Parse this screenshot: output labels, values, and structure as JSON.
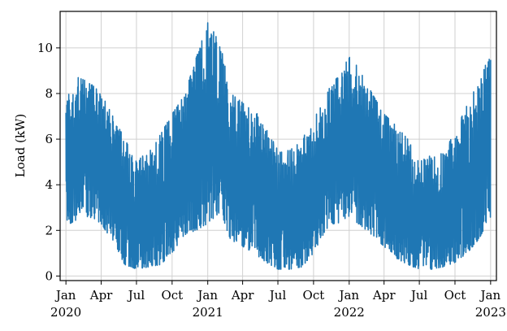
{
  "chart_data": {
    "type": "line",
    "title": "",
    "xlabel": "",
    "ylabel": "Load (kW)",
    "x_range": [
      "2019-12-17",
      "2023-01-16"
    ],
    "ylim": [
      -0.2,
      11.6
    ],
    "grid": true,
    "legend": "none",
    "x_ticks": [
      {
        "date": "2020-01-01",
        "label": "Jan",
        "year": "2020"
      },
      {
        "date": "2020-04-01",
        "label": "Apr",
        "year": ""
      },
      {
        "date": "2020-07-01",
        "label": "Jul",
        "year": ""
      },
      {
        "date": "2020-10-01",
        "label": "Oct",
        "year": ""
      },
      {
        "date": "2021-01-01",
        "label": "Jan",
        "year": "2021"
      },
      {
        "date": "2021-04-01",
        "label": "Apr",
        "year": ""
      },
      {
        "date": "2021-07-01",
        "label": "Jul",
        "year": ""
      },
      {
        "date": "2021-10-01",
        "label": "Oct",
        "year": ""
      },
      {
        "date": "2022-01-01",
        "label": "Jan",
        "year": "2022"
      },
      {
        "date": "2022-04-01",
        "label": "Apr",
        "year": ""
      },
      {
        "date": "2022-07-01",
        "label": "Jul",
        "year": ""
      },
      {
        "date": "2022-10-01",
        "label": "Oct",
        "year": ""
      },
      {
        "date": "2023-01-01",
        "label": "Jan",
        "year": "2023"
      }
    ],
    "y_ticks": [
      0,
      2,
      4,
      6,
      8,
      10
    ],
    "series": [
      {
        "color": "#1f77b4",
        "x": [
          "2020-01-01",
          "2020-02-01",
          "2020-03-01",
          "2020-04-01",
          "2020-05-01",
          "2020-06-01",
          "2020-07-01",
          "2020-08-01",
          "2020-09-01",
          "2020-10-01",
          "2020-11-01",
          "2020-12-01",
          "2021-01-01",
          "2021-02-01",
          "2021-03-01",
          "2021-04-01",
          "2021-05-01",
          "2021-06-01",
          "2021-07-01",
          "2021-08-01",
          "2021-09-01",
          "2021-10-01",
          "2021-11-01",
          "2021-12-01",
          "2022-01-01",
          "2022-02-01",
          "2022-03-01",
          "2022-04-01",
          "2022-05-01",
          "2022-06-01",
          "2022-07-01",
          "2022-08-01",
          "2022-09-01",
          "2022-10-01",
          "2022-11-01",
          "2022-12-01",
          "2023-01-01"
        ],
        "min": [
          2.2,
          2.5,
          2.6,
          2.3,
          1.5,
          0.5,
          0.3,
          0.4,
          0.5,
          1.0,
          1.8,
          2.0,
          2.3,
          2.8,
          1.6,
          1.3,
          1.0,
          0.6,
          0.3,
          0.3,
          0.4,
          1.0,
          2.0,
          2.3,
          2.6,
          2.2,
          1.8,
          1.3,
          0.8,
          0.5,
          0.3,
          0.3,
          0.4,
          0.6,
          1.0,
          1.6,
          2.6
        ],
        "max": [
          7.8,
          8.7,
          8.5,
          8.0,
          7.0,
          6.0,
          5.0,
          5.5,
          6.2,
          7.1,
          7.9,
          9.5,
          11.1,
          10.3,
          8.0,
          7.6,
          7.3,
          6.5,
          5.5,
          5.5,
          6.0,
          6.8,
          8.0,
          8.7,
          9.6,
          9.0,
          8.0,
          7.1,
          6.6,
          6.0,
          5.0,
          5.3,
          5.4,
          6.3,
          7.5,
          8.5,
          9.8
        ]
      }
    ]
  }
}
